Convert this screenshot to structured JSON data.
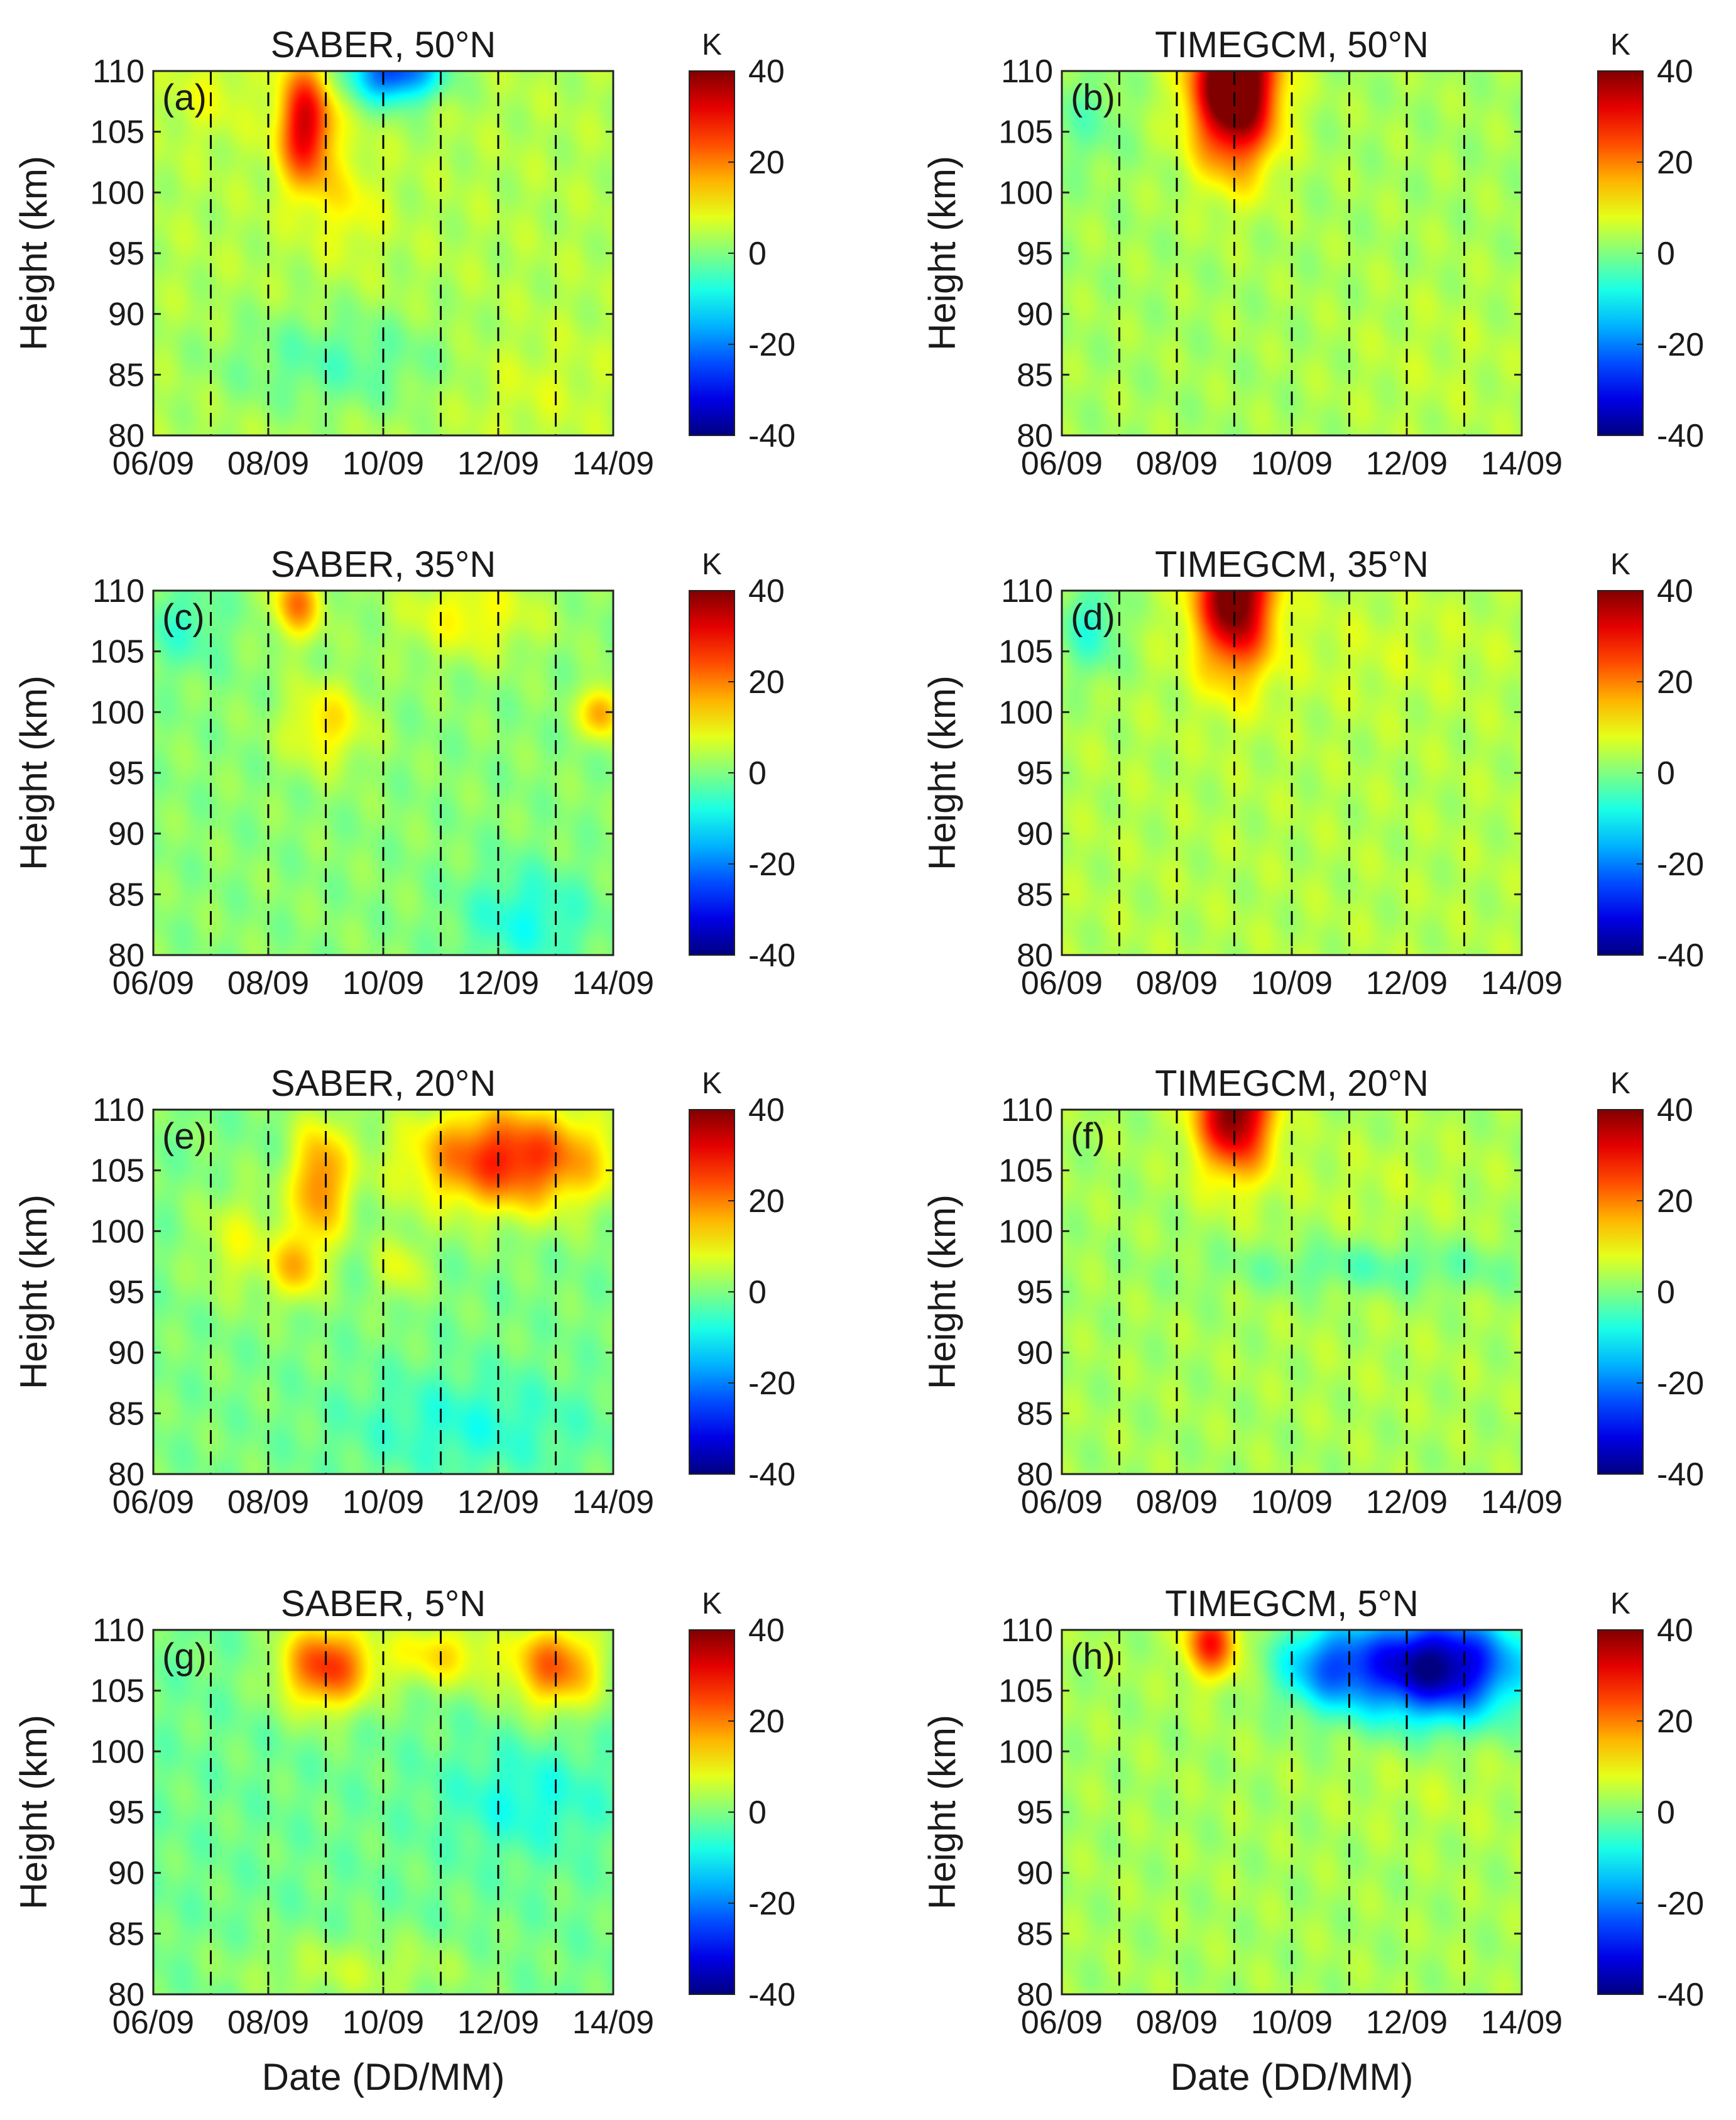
{
  "chart_data": [
    {
      "type": "heatmap",
      "panel_label": "(a)",
      "title": "SABER, 50°N",
      "xlabel": "",
      "ylabel": "Height (km)",
      "x_ticks": [
        "06/09",
        "08/09",
        "10/09",
        "12/09",
        "14/09"
      ],
      "y_ticks": [
        "80",
        "85",
        "90",
        "95",
        "100",
        "105",
        "110"
      ],
      "xlim_days": [
        0,
        8
      ],
      "ylim": [
        80,
        110
      ],
      "dashed_days": [
        1,
        2,
        3,
        4,
        5,
        6,
        7
      ],
      "colorbar": {
        "unit": "K",
        "ticks": [
          "40",
          "20",
          "0",
          "-20",
          "-40"
        ],
        "range": [
          -40,
          40
        ]
      },
      "background_value_K": 4,
      "features": [
        {
          "day": 2.65,
          "height_km": 105.5,
          "value_K": 34,
          "sd_day": 0.32,
          "sd_km": 3.5
        },
        {
          "day": 3.4,
          "height_km": 99,
          "value_K": 10,
          "sd_day": 0.4,
          "sd_km": 3
        },
        {
          "day": 4.2,
          "height_km": 110,
          "value_K": -26,
          "sd_day": 0.55,
          "sd_km": 1.8
        },
        {
          "day": 1.0,
          "height_km": 108,
          "value_K": 8,
          "sd_day": 0.5,
          "sd_km": 2.5
        },
        {
          "day": 3.2,
          "height_km": 86,
          "value_K": -3,
          "sd_day": 1.5,
          "sd_km": 3
        },
        {
          "day": 6.5,
          "height_km": 84,
          "value_K": 7,
          "sd_day": 1.0,
          "sd_km": 3
        }
      ]
    },
    {
      "type": "heatmap",
      "panel_label": "(b)",
      "title": "TIMEGCM, 50°N",
      "xlabel": "",
      "ylabel": "Height (km)",
      "x_ticks": [
        "06/09",
        "08/09",
        "10/09",
        "12/09",
        "14/09"
      ],
      "y_ticks": [
        "80",
        "85",
        "90",
        "95",
        "100",
        "105",
        "110"
      ],
      "xlim_days": [
        0,
        8
      ],
      "ylim": [
        80,
        110
      ],
      "dashed_days": [
        1,
        2,
        3,
        4,
        5,
        6,
        7
      ],
      "colorbar": {
        "unit": "K",
        "ticks": [
          "40",
          "20",
          "0",
          "-20",
          "-40"
        ],
        "range": [
          -40,
          40
        ]
      },
      "background_value_K": 3,
      "features": [
        {
          "day": 3.0,
          "height_km": 109,
          "value_K": 55,
          "sd_day": 0.5,
          "sd_km": 4.5
        },
        {
          "day": 6.5,
          "height_km": 86,
          "value_K": 5,
          "sd_day": 1.2,
          "sd_km": 5
        },
        {
          "day": 0.4,
          "height_km": 106,
          "value_K": -2,
          "sd_day": 0.5,
          "sd_km": 3
        }
      ]
    },
    {
      "type": "heatmap",
      "panel_label": "(c)",
      "title": "SABER, 35°N",
      "xlabel": "",
      "ylabel": "Height (km)",
      "x_ticks": [
        "06/09",
        "08/09",
        "10/09",
        "12/09",
        "14/09"
      ],
      "y_ticks": [
        "80",
        "85",
        "90",
        "95",
        "100",
        "105",
        "110"
      ],
      "xlim_days": [
        0,
        8
      ],
      "ylim": [
        80,
        110
      ],
      "dashed_days": [
        1,
        2,
        3,
        4,
        5,
        6,
        7
      ],
      "colorbar": {
        "unit": "K",
        "ticks": [
          "40",
          "20",
          "0",
          "-20",
          "-40"
        ],
        "range": [
          -40,
          40
        ]
      },
      "background_value_K": 1,
      "features": [
        {
          "day": 2.5,
          "height_km": 109,
          "value_K": 20,
          "sd_day": 0.3,
          "sd_km": 2
        },
        {
          "day": 3.0,
          "height_km": 99,
          "value_K": 12,
          "sd_day": 0.5,
          "sd_km": 2.5
        },
        {
          "day": 5.5,
          "height_km": 108,
          "value_K": 10,
          "sd_day": 0.9,
          "sd_km": 2.5
        },
        {
          "day": 7.8,
          "height_km": 100,
          "value_K": 18,
          "sd_day": 0.25,
          "sd_km": 1.5
        },
        {
          "day": 0.5,
          "height_km": 107,
          "value_K": -5,
          "sd_day": 0.5,
          "sd_km": 2.5
        },
        {
          "day": 6.5,
          "height_km": 83,
          "value_K": -8,
          "sd_day": 0.8,
          "sd_km": 3
        }
      ]
    },
    {
      "type": "heatmap",
      "panel_label": "(d)",
      "title": "TIMEGCM, 35°N",
      "xlabel": "",
      "ylabel": "Height (km)",
      "x_ticks": [
        "06/09",
        "08/09",
        "10/09",
        "12/09",
        "14/09"
      ],
      "y_ticks": [
        "80",
        "85",
        "90",
        "95",
        "100",
        "105",
        "110"
      ],
      "xlim_days": [
        0,
        8
      ],
      "ylim": [
        80,
        110
      ],
      "dashed_days": [
        1,
        2,
        3,
        4,
        5,
        6,
        7
      ],
      "colorbar": {
        "unit": "K",
        "ticks": [
          "40",
          "20",
          "0",
          "-20",
          "-40"
        ],
        "range": [
          -40,
          40
        ]
      },
      "background_value_K": 4,
      "features": [
        {
          "day": 3.0,
          "height_km": 110,
          "value_K": 46,
          "sd_day": 0.45,
          "sd_km": 4.5
        },
        {
          "day": 5.5,
          "height_km": 105,
          "value_K": 6,
          "sd_day": 1.6,
          "sd_km": 3
        },
        {
          "day": 0.5,
          "height_km": 107,
          "value_K": -6,
          "sd_day": 0.4,
          "sd_km": 3
        },
        {
          "day": 6.0,
          "height_km": 84,
          "value_K": 4,
          "sd_day": 1.5,
          "sd_km": 3
        }
      ]
    },
    {
      "type": "heatmap",
      "panel_label": "(e)",
      "title": "SABER, 20°N",
      "xlabel": "",
      "ylabel": "Height (km)",
      "x_ticks": [
        "06/09",
        "08/09",
        "10/09",
        "12/09",
        "14/09"
      ],
      "y_ticks": [
        "80",
        "85",
        "90",
        "95",
        "100",
        "105",
        "110"
      ],
      "xlim_days": [
        0,
        8
      ],
      "ylim": [
        80,
        110
      ],
      "dashed_days": [
        1,
        2,
        3,
        4,
        5,
        6,
        7
      ],
      "colorbar": {
        "unit": "K",
        "ticks": [
          "40",
          "20",
          "0",
          "-20",
          "-40"
        ],
        "range": [
          -40,
          40
        ]
      },
      "background_value_K": 0,
      "features": [
        {
          "day": 6.2,
          "height_km": 106,
          "value_K": 28,
          "sd_day": 1.2,
          "sd_km": 3
        },
        {
          "day": 2.9,
          "height_km": 104,
          "value_K": 20,
          "sd_day": 0.35,
          "sd_km": 3.5
        },
        {
          "day": 2.5,
          "height_km": 97,
          "value_K": 14,
          "sd_day": 0.3,
          "sd_km": 2
        },
        {
          "day": 1.5,
          "height_km": 99,
          "value_K": 8,
          "sd_day": 0.5,
          "sd_km": 3
        },
        {
          "day": 4.3,
          "height_km": 97,
          "value_K": 8,
          "sd_day": 0.3,
          "sd_km": 2
        },
        {
          "day": 5.5,
          "height_km": 84,
          "value_K": -7,
          "sd_day": 1.5,
          "sd_km": 3
        }
      ]
    },
    {
      "type": "heatmap",
      "panel_label": "(f)",
      "title": "TIMEGCM, 20°N",
      "xlabel": "",
      "ylabel": "Height (km)",
      "x_ticks": [
        "06/09",
        "08/09",
        "10/09",
        "12/09",
        "14/09"
      ],
      "y_ticks": [
        "80",
        "85",
        "90",
        "95",
        "100",
        "105",
        "110"
      ],
      "xlim_days": [
        0,
        8
      ],
      "ylim": [
        80,
        110
      ],
      "dashed_days": [
        1,
        2,
        3,
        4,
        5,
        6,
        7
      ],
      "colorbar": {
        "unit": "K",
        "ticks": [
          "40",
          "20",
          "0",
          "-20",
          "-40"
        ],
        "range": [
          -40,
          40
        ]
      },
      "background_value_K": 3,
      "features": [
        {
          "day": 3.0,
          "height_km": 110,
          "value_K": 42,
          "sd_day": 0.45,
          "sd_km": 3.5
        },
        {
          "day": 5.5,
          "height_km": 104,
          "value_K": 5,
          "sd_day": 1.6,
          "sd_km": 3
        },
        {
          "day": 5.5,
          "height_km": 89,
          "value_K": 4,
          "sd_day": 1.5,
          "sd_km": 4
        },
        {
          "day": 5.5,
          "height_km": 97,
          "value_K": -3,
          "sd_day": 2.0,
          "sd_km": 1.5
        }
      ]
    },
    {
      "type": "heatmap",
      "panel_label": "(g)",
      "title": "SABER, 5°N",
      "xlabel": "Date (DD/MM)",
      "ylabel": "Height (km)",
      "x_ticks": [
        "06/09",
        "08/09",
        "10/09",
        "12/09",
        "14/09"
      ],
      "y_ticks": [
        "80",
        "85",
        "90",
        "95",
        "100",
        "105",
        "110"
      ],
      "xlim_days": [
        0,
        8
      ],
      "ylim": [
        80,
        110
      ],
      "dashed_days": [
        1,
        2,
        3,
        4,
        5,
        6,
        7
      ],
      "colorbar": {
        "unit": "K",
        "ticks": [
          "40",
          "20",
          "0",
          "-20",
          "-40"
        ],
        "range": [
          -40,
          40
        ]
      },
      "background_value_K": -1,
      "features": [
        {
          "day": 3.0,
          "height_km": 107,
          "value_K": 26,
          "sd_day": 0.55,
          "sd_km": 2.5
        },
        {
          "day": 7.0,
          "height_km": 107,
          "value_K": 22,
          "sd_day": 0.55,
          "sd_km": 2.5
        },
        {
          "day": 5.0,
          "height_km": 108,
          "value_K": 12,
          "sd_day": 0.7,
          "sd_km": 2
        },
        {
          "day": 6.5,
          "height_km": 96,
          "value_K": -8,
          "sd_day": 1.0,
          "sd_km": 3
        },
        {
          "day": 3.5,
          "height_km": 82,
          "value_K": 5,
          "sd_day": 1.5,
          "sd_km": 2
        }
      ]
    },
    {
      "type": "heatmap",
      "panel_label": "(h)",
      "title": "TIMEGCM, 5°N",
      "xlabel": "Date (DD/MM)",
      "ylabel": "Height (km)",
      "x_ticks": [
        "06/09",
        "08/09",
        "10/09",
        "12/09",
        "14/09"
      ],
      "y_ticks": [
        "80",
        "85",
        "90",
        "95",
        "100",
        "105",
        "110"
      ],
      "xlim_days": [
        0,
        8
      ],
      "ylim": [
        80,
        110
      ],
      "dashed_days": [
        1,
        2,
        3,
        4,
        5,
        6,
        7
      ],
      "colorbar": {
        "unit": "K",
        "ticks": [
          "40",
          "20",
          "0",
          "-20",
          "-40"
        ],
        "range": [
          -40,
          40
        ]
      },
      "background_value_K": 3,
      "features": [
        {
          "day": 6.5,
          "height_km": 107,
          "value_K": -40,
          "sd_day": 1.0,
          "sd_km": 3
        },
        {
          "day": 4.6,
          "height_km": 107,
          "value_K": -16,
          "sd_day": 0.6,
          "sd_km": 2.5
        },
        {
          "day": 2.6,
          "height_km": 109,
          "value_K": 28,
          "sd_day": 0.32,
          "sd_km": 2
        },
        {
          "day": 6.5,
          "height_km": 97,
          "value_K": 5,
          "sd_day": 1.2,
          "sd_km": 3
        }
      ]
    }
  ]
}
